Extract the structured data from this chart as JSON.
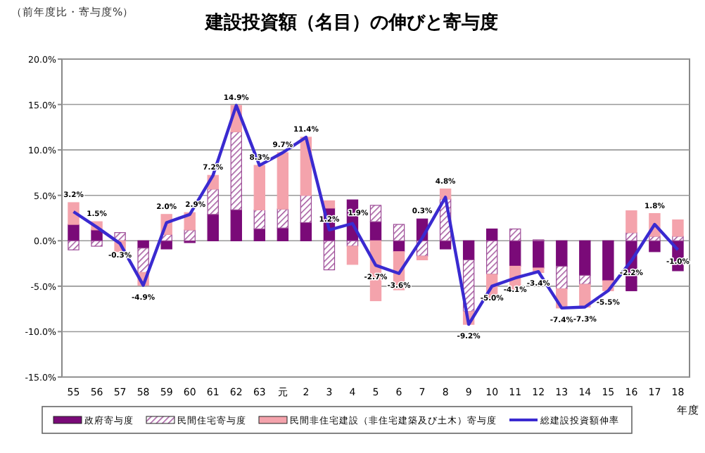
{
  "chart_data": {
    "type": "bar",
    "title": "建設投資額（名目）の伸びと寄与度",
    "ylabel": "（前年度比・寄与度%）",
    "xlabel": "年度",
    "categories": [
      "55",
      "56",
      "57",
      "58",
      "59",
      "60",
      "61",
      "62",
      "63",
      "元",
      "2",
      "3",
      "4",
      "5",
      "6",
      "7",
      "8",
      "9",
      "10",
      "11",
      "12",
      "13",
      "14",
      "15",
      "16",
      "17",
      "18"
    ],
    "stacked": true,
    "series": [
      {
        "name": "政府寄与度",
        "color": "#7a0a78",
        "values": [
          1.8,
          1.2,
          0,
          -0.8,
          -0.9,
          -0.2,
          2.9,
          3.4,
          1.3,
          1.4,
          2.0,
          3.6,
          4.5,
          2.1,
          -1.2,
          2.4,
          -0.9,
          -2.1,
          1.3,
          -2.8,
          -3.0,
          -2.8,
          -3.8,
          -4.4,
          -5.5,
          -1.2,
          -3.3
        ]
      },
      {
        "name": "民間住宅寄与度",
        "color": "#9c4a96",
        "values": [
          -1.0,
          -0.6,
          0.9,
          -2.7,
          0.7,
          1.2,
          2.8,
          8.6,
          2.1,
          2.1,
          3.0,
          -3.2,
          -0.6,
          1.8,
          1.8,
          -1.7,
          4.6,
          -5.7,
          -3.7,
          1.3,
          0.1,
          -2.5,
          -1.0,
          0,
          0.9,
          0.5,
          0.5
        ]
      },
      {
        "name": "民間非住宅建設（非住宅建築及び土木）寄与度",
        "color": "#f4a3ac",
        "values": [
          2.4,
          0.9,
          -1.2,
          -1.4,
          2.2,
          1.9,
          1.5,
          2.9,
          4.9,
          6.2,
          6.4,
          0.8,
          -2.0,
          -6.6,
          -4.2,
          -0.4,
          1.1,
          -1.4,
          -2.6,
          -2.6,
          -0.5,
          -2.1,
          -2.5,
          -1.1,
          2.4,
          2.5,
          1.8
        ]
      },
      {
        "name": "総建設投資額伸率",
        "type": "line",
        "color": "#3a2ad0",
        "values": [
          3.2,
          1.5,
          -0.3,
          -4.9,
          2.0,
          2.9,
          7.2,
          14.9,
          8.3,
          9.7,
          11.4,
          1.2,
          1.9,
          -2.7,
          -3.6,
          0.3,
          4.8,
          -9.2,
          -5.0,
          -4.1,
          -3.4,
          -7.4,
          -7.3,
          -5.5,
          -2.2,
          1.8,
          -1.0
        ],
        "value_labels": [
          "3.2%",
          "1.5%",
          "-0.3%",
          "-4.9%",
          "2.0%",
          "2.9%",
          "7.2%",
          "14.9%",
          "8.3%",
          "9.7%",
          "11.4%",
          "1.2%",
          "1.9%",
          "-2.7%",
          "-3.6%",
          "0.3%",
          "4.8%",
          "-9.2%",
          "-5.0%",
          "-4.1%",
          "-3.4%",
          "-7.4%",
          "-7.3%",
          "-5.5%",
          "-2.2%",
          "1.8%",
          "-1.0%"
        ]
      }
    ],
    "ylim": [
      -15,
      20
    ],
    "yticks": [
      {
        "value": -15,
        "label": "-15.0%"
      },
      {
        "value": -10,
        "label": "-10.0%"
      },
      {
        "value": -5,
        "label": "-5.0%"
      },
      {
        "value": 0,
        "label": "0.0%"
      },
      {
        "value": 5,
        "label": "5.0%"
      },
      {
        "value": 10,
        "label": "10.0%"
      },
      {
        "value": 15,
        "label": "15.0%"
      },
      {
        "value": 20,
        "label": "20.0%"
      }
    ],
    "grid": "y",
    "legend": "bottom",
    "marker": "none",
    "line_style": "solid"
  }
}
